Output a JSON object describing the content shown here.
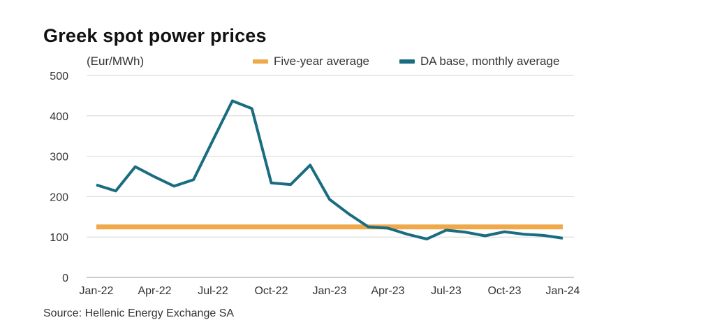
{
  "header": {
    "title": "Greek spot power prices",
    "unit": "(Eur/MWh)"
  },
  "legend": {
    "items": [
      {
        "label": "Five-year average",
        "color": "#f0a94a"
      },
      {
        "label": "DA base, monthly average",
        "color": "#1a6c80"
      }
    ]
  },
  "source": "Source: Hellenic Energy Exchange SA",
  "chart_data": {
    "type": "line",
    "title": "Greek spot power prices",
    "ylabel": "(Eur/MWh)",
    "xlabel": "",
    "ylim": [
      0,
      500
    ],
    "yticks": [
      0,
      100,
      200,
      300,
      400,
      500
    ],
    "xtick_labels": [
      "Jan-22",
      "Apr-22",
      "Jul-22",
      "Oct-22",
      "Jan-23",
      "Apr-23",
      "Jul-23",
      "Oct-23",
      "Jan-24"
    ],
    "grid": "horizontal",
    "legend_position": "top-right",
    "x": [
      "Jan-22",
      "Feb-22",
      "Mar-22",
      "Apr-22",
      "May-22",
      "Jun-22",
      "Jul-22",
      "Aug-22",
      "Sep-22",
      "Oct-22",
      "Nov-22",
      "Dec-22",
      "Jan-23",
      "Feb-23",
      "Mar-23",
      "Apr-23",
      "May-23",
      "Jun-23",
      "Jul-23",
      "Aug-23",
      "Sep-23",
      "Oct-23",
      "Nov-23",
      "Dec-23",
      "Jan-24"
    ],
    "series": [
      {
        "name": "Five-year average",
        "color": "#f0a94a",
        "values": [
          125,
          125,
          125,
          125,
          125,
          125,
          125,
          125,
          125,
          125,
          125,
          125,
          125,
          125,
          125,
          125,
          125,
          125,
          125,
          125,
          125,
          125,
          125,
          125,
          125
        ]
      },
      {
        "name": "DA base, monthly average",
        "color": "#1a6c80",
        "values": [
          229,
          214,
          274,
          249,
          226,
          242,
          340,
          437,
          418,
          234,
          230,
          278,
          193,
          157,
          125,
          122,
          107,
          95,
          117,
          112,
          103,
          113,
          107,
          104,
          97
        ]
      }
    ]
  }
}
